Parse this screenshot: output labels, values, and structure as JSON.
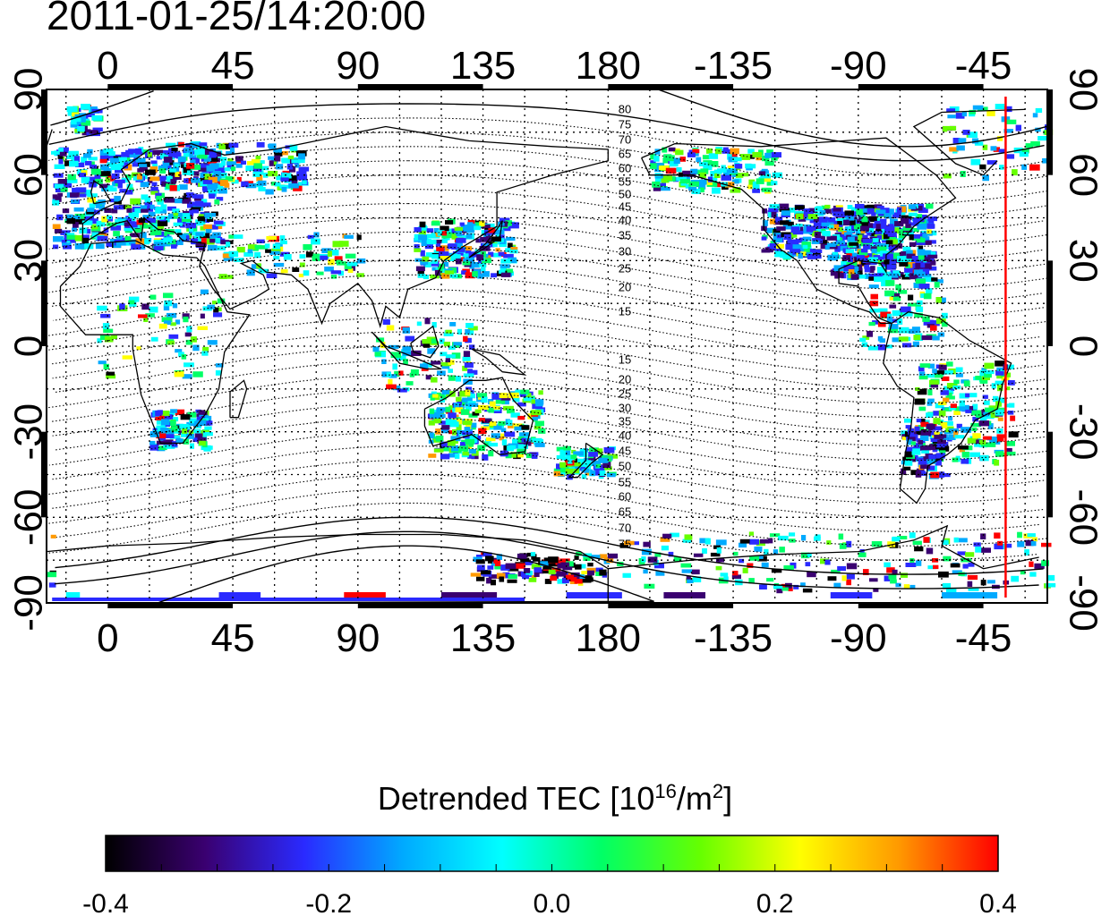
{
  "timestamp": "2011-01-25/14:20:00",
  "map": {
    "lon_ticks_top": [
      "0",
      "45",
      "90",
      "135",
      "180",
      "-135",
      "-90",
      "-45"
    ],
    "lon_ticks_bottom": [
      "0",
      "45",
      "90",
      "135",
      "180",
      "-135",
      "-90",
      "-45"
    ],
    "lat_ticks": [
      "90",
      "60",
      "30",
      "0",
      "-30",
      "-60",
      "-90"
    ],
    "contour_labels_north": [
      "80",
      "75",
      "70",
      "65",
      "60",
      "55",
      "50",
      "45",
      "40",
      "35",
      "30",
      "25",
      "20",
      "15"
    ],
    "contour_labels_south": [
      "15",
      "20",
      "25",
      "30",
      "35",
      "40",
      "45",
      "50",
      "55",
      "60",
      "65",
      "70",
      "75"
    ],
    "marker_line_color": "#ff0000",
    "marker_line_lon": -37
  },
  "colorbar": {
    "title_main": "Detrended TEC  [10",
    "title_exp": "16",
    "title_unit": "/m",
    "title_unit_exp": "2",
    "title_end": "]",
    "min": -0.4,
    "max": 0.4,
    "tick_labels": [
      "-0.4",
      "-0.2",
      "0.0",
      "0.2",
      "0.4"
    ],
    "colors": [
      "#000000",
      "#3a0070",
      "#2a2aff",
      "#00aaff",
      "#00ffff",
      "#00ff66",
      "#66ff00",
      "#ffff00",
      "#ff9900",
      "#ff0000"
    ]
  }
}
